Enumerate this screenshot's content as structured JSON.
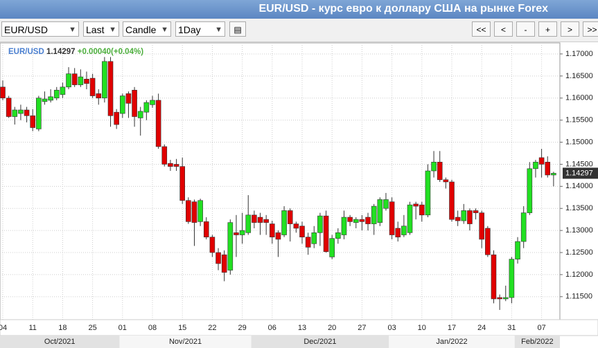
{
  "header": {
    "title": "EUR/USD - курс евро к доллару США на рынке Forex"
  },
  "toolbar": {
    "symbol": "EUR/USD",
    "price_type": "Last",
    "chart_style": "Candle",
    "period": "1Day",
    "nav_buttons": [
      "<<",
      "<",
      "-",
      "+",
      ">",
      ">>"
    ]
  },
  "chart_data": {
    "type": "candlestick",
    "legend": {
      "symbol": "EUR/USD",
      "last": 1.14297,
      "change": "+0.00040(+0.04%)"
    },
    "last_price": 1.14297,
    "up_color": "#22e022",
    "down_color": "#e00000",
    "grid": true,
    "ylim": [
      1.1098,
      1.1725
    ],
    "yticks": [
      {
        "value": 1.115,
        "label": "1.11500"
      },
      {
        "value": 1.12,
        "label": "1.12000"
      },
      {
        "value": 1.125,
        "label": "1.12500"
      },
      {
        "value": 1.13,
        "label": "1.13000"
      },
      {
        "value": 1.135,
        "label": "1.13500"
      },
      {
        "value": 1.14,
        "label": "1.14000"
      },
      {
        "value": 1.145,
        "label": "1.14500"
      },
      {
        "value": 1.15,
        "label": "1.15000"
      },
      {
        "value": 1.155,
        "label": "1.15500"
      },
      {
        "value": 1.16,
        "label": "1.16000"
      },
      {
        "value": 1.165,
        "label": "1.16500"
      },
      {
        "value": 1.17,
        "label": "1.17000"
      }
    ],
    "categories": [
      "04",
      null,
      null,
      null,
      null,
      "11",
      null,
      null,
      null,
      null,
      "18",
      null,
      null,
      null,
      null,
      "25",
      null,
      null,
      null,
      null,
      "01",
      null,
      null,
      null,
      null,
      "08",
      null,
      null,
      null,
      null,
      "15",
      null,
      null,
      null,
      null,
      "22",
      null,
      null,
      null,
      null,
      "29",
      null,
      null,
      null,
      null,
      "06",
      null,
      null,
      null,
      null,
      "13",
      null,
      null,
      null,
      null,
      "20",
      null,
      null,
      null,
      null,
      "27",
      null,
      null,
      null,
      null,
      "03",
      null,
      null,
      null,
      null,
      "10",
      null,
      null,
      null,
      null,
      "17",
      null,
      null,
      null,
      null,
      "24",
      null,
      null,
      null,
      null,
      "31",
      null,
      null,
      null,
      null,
      "07",
      null,
      null
    ],
    "months": [
      "Oct/2021",
      null,
      null,
      null,
      null,
      null,
      null,
      null,
      null,
      null,
      null,
      null,
      null,
      null,
      null,
      null,
      null,
      null,
      null,
      null,
      "Nov/2021",
      null,
      null,
      null,
      null,
      null,
      null,
      null,
      null,
      null,
      null,
      null,
      null,
      null,
      null,
      null,
      null,
      null,
      null,
      null,
      null,
      null,
      "Dec/2021",
      null,
      null,
      null,
      null,
      null,
      null,
      null,
      null,
      null,
      null,
      null,
      null,
      null,
      null,
      null,
      null,
      null,
      null,
      null,
      null,
      null,
      null,
      "Jan/2022",
      null,
      null,
      null,
      null,
      null,
      null,
      null,
      null,
      null,
      null,
      null,
      null,
      null,
      null,
      null,
      null,
      null,
      null,
      null,
      null,
      "Feb/2022",
      null,
      null,
      null,
      null,
      null,
      null
    ],
    "open": [
      1.1625,
      1.16,
      1.1558,
      1.1565,
      1.1573,
      1.156,
      1.153,
      1.1592,
      1.1595,
      1.16,
      1.1608,
      1.1625,
      1.1655,
      1.163,
      1.1643,
      1.1645,
      1.161,
      1.16,
      1.1683,
      1.1568,
      1.1565,
      1.161,
      1.1618,
      1.1555,
      1.1568,
      1.1585,
      1.1595,
      1.149,
      1.1452,
      1.145,
      1.1445,
      1.1368,
      1.1365,
      1.132,
      1.132,
      1.1285,
      1.125,
      1.1245,
      1.121,
      1.1295,
      1.129,
      1.1295,
      1.1335,
      1.133,
      1.1325,
      1.1315,
      1.1295,
      1.129,
      1.1345,
      1.1315,
      1.131,
      1.1285,
      1.127,
      1.1295,
      1.1333,
      1.124,
      1.1282,
      1.129,
      1.133,
      1.1318,
      1.1325,
      1.133,
      1.1315,
      1.1318,
      1.135,
      1.1365,
      1.1305,
      1.129,
      1.1295,
      1.136,
      1.1358,
      1.1335,
      1.1435,
      1.1455,
      1.1415,
      1.141,
      1.133,
      1.1322,
      1.1345,
      1.1345,
      1.134,
      1.1305,
      1.1245,
      1.1148,
      1.1145,
      1.1148,
      1.1235,
      1.1275,
      1.134,
      1.144,
      1.1465,
      1.1455,
      1.14257
    ],
    "high": [
      1.164,
      1.1605,
      1.158,
      1.1585,
      1.158,
      1.1575,
      1.1605,
      1.1615,
      1.162,
      1.1625,
      1.1635,
      1.167,
      1.1668,
      1.1665,
      1.166,
      1.1655,
      1.162,
      1.1693,
      1.1693,
      1.1575,
      1.161,
      1.1615,
      1.1625,
      1.158,
      1.1595,
      1.1605,
      1.161,
      1.1495,
      1.146,
      1.1462,
      1.1465,
      1.1375,
      1.137,
      1.1372,
      1.133,
      1.129,
      1.126,
      1.1255,
      1.1325,
      1.1335,
      1.134,
      1.138,
      1.1345,
      1.134,
      1.1335,
      1.1322,
      1.13,
      1.1355,
      1.135,
      1.132,
      1.132,
      1.1295,
      1.131,
      1.134,
      1.1345,
      1.129,
      1.1305,
      1.1345,
      1.1335,
      1.133,
      1.1335,
      1.134,
      1.136,
      1.1375,
      1.1385,
      1.1375,
      1.132,
      1.1335,
      1.1365,
      1.1365,
      1.1365,
      1.145,
      1.148,
      1.148,
      1.142,
      1.1415,
      1.1345,
      1.136,
      1.135,
      1.135,
      1.1345,
      1.131,
      1.1255,
      1.1155,
      1.1175,
      1.124,
      1.1285,
      1.1355,
      1.1455,
      1.146,
      1.1485,
      1.1468,
      1.1433
    ],
    "low": [
      1.1595,
      1.1555,
      1.154,
      1.155,
      1.1545,
      1.1525,
      1.1525,
      1.1585,
      1.159,
      1.1595,
      1.16,
      1.162,
      1.1625,
      1.1625,
      1.162,
      1.16,
      1.1585,
      1.159,
      1.1535,
      1.153,
      1.1555,
      1.1555,
      1.1535,
      1.1515,
      1.155,
      1.1578,
      1.1485,
      1.1445,
      1.1435,
      1.1435,
      1.136,
      1.1315,
      1.1265,
      1.131,
      1.128,
      1.124,
      1.121,
      1.1185,
      1.12,
      1.124,
      1.127,
      1.129,
      1.1305,
      1.129,
      1.129,
      1.127,
      1.124,
      1.1285,
      1.1275,
      1.1295,
      1.127,
      1.1245,
      1.126,
      1.1265,
      1.125,
      1.1235,
      1.127,
      1.128,
      1.131,
      1.1305,
      1.13,
      1.13,
      1.129,
      1.131,
      1.1345,
      1.128,
      1.1275,
      1.1285,
      1.129,
      1.1325,
      1.132,
      1.133,
      1.142,
      1.141,
      1.1395,
      1.132,
      1.131,
      1.1315,
      1.13,
      1.1325,
      1.126,
      1.124,
      1.1135,
      1.112,
      1.114,
      1.1135,
      1.1225,
      1.126,
      1.1335,
      1.142,
      1.142,
      1.142,
      1.14
    ],
    "close": [
      1.16,
      1.1558,
      1.1573,
      1.1573,
      1.156,
      1.1533,
      1.16,
      1.1598,
      1.1603,
      1.1618,
      1.1625,
      1.1655,
      1.163,
      1.1648,
      1.1633,
      1.1605,
      1.16,
      1.1683,
      1.156,
      1.154,
      1.1605,
      1.1588,
      1.1558,
      1.157,
      1.159,
      1.1595,
      1.149,
      1.145,
      1.1445,
      1.1445,
      1.1368,
      1.132,
      1.1318,
      1.1368,
      1.1285,
      1.125,
      1.1225,
      1.1205,
      1.1318,
      1.129,
      1.13,
      1.1335,
      1.1318,
      1.1318,
      1.1318,
      1.1285,
      1.128,
      1.1345,
      1.1315,
      1.1305,
      1.1285,
      1.1262,
      1.1295,
      1.1333,
      1.1252,
      1.1282,
      1.1295,
      1.133,
      1.132,
      1.1325,
      1.132,
      1.1315,
      1.1355,
      1.137,
      1.137,
      1.129,
      1.1285,
      1.131,
      1.1358,
      1.1355,
      1.1335,
      1.1435,
      1.1455,
      1.1415,
      1.141,
      1.1325,
      1.1322,
      1.1345,
      1.1315,
      1.134,
      1.128,
      1.1245,
      1.1145,
      1.1145,
      1.1148,
      1.1235,
      1.1275,
      1.134,
      1.144,
      1.1455,
      1.145,
      1.14257,
      1.14297
    ]
  }
}
